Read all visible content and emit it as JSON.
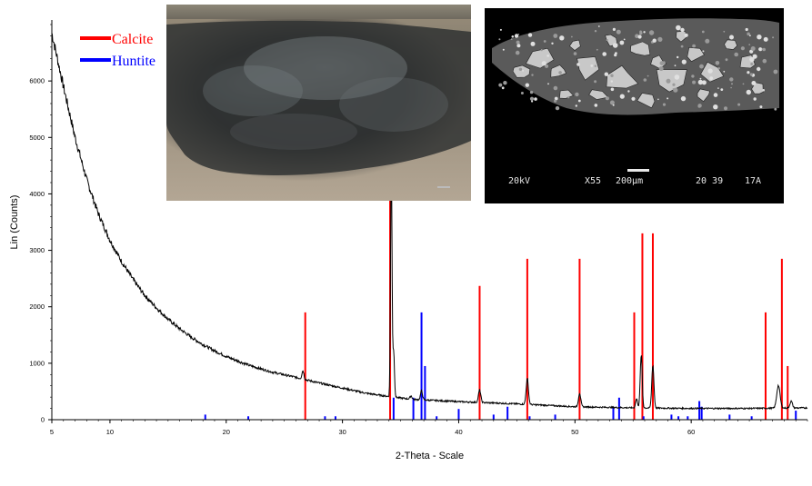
{
  "chart_data": {
    "type": "line",
    "xlabel": "2-Theta - Scale",
    "ylabel": "Lin (Counts)",
    "xlim": [
      5,
      70
    ],
    "ylim": [
      0,
      7000
    ],
    "x_ticks": [
      5,
      10,
      20,
      30,
      40,
      50,
      60
    ],
    "y_ticks": [
      0,
      1000,
      2000,
      3000,
      4000,
      5000,
      6000
    ],
    "grid": false,
    "legend_position": "top-left",
    "colors": {
      "trace": "#000000",
      "calcite": "#ff0000",
      "huntite": "#0000ff"
    },
    "trace": {
      "baseline_points": [
        [
          5,
          6850
        ],
        [
          6,
          5900
        ],
        [
          7,
          5000
        ],
        [
          8,
          4250
        ],
        [
          9,
          3650
        ],
        [
          10,
          3180
        ],
        [
          11,
          2800
        ],
        [
          12,
          2480
        ],
        [
          13,
          2200
        ],
        [
          14,
          1980
        ],
        [
          15,
          1780
        ],
        [
          16,
          1610
        ],
        [
          17,
          1460
        ],
        [
          18,
          1330
        ],
        [
          19,
          1220
        ],
        [
          20,
          1120
        ],
        [
          22,
          960
        ],
        [
          24,
          840
        ],
        [
          26,
          750
        ],
        [
          28,
          650
        ],
        [
          30,
          560
        ],
        [
          32,
          470
        ],
        [
          34,
          410
        ],
        [
          36,
          360
        ],
        [
          40,
          320
        ],
        [
          45,
          280
        ],
        [
          50,
          230
        ],
        [
          55,
          210
        ],
        [
          60,
          200
        ],
        [
          65,
          200
        ],
        [
          70,
          210
        ]
      ],
      "peaks": [
        {
          "x": 26.6,
          "height": 150,
          "width": 0.12
        },
        {
          "x": 34.2,
          "height": 4150,
          "width": 0.09
        },
        {
          "x": 34.4,
          "height": 820,
          "width": 0.1
        },
        {
          "x": 35.9,
          "height": 60,
          "width": 0.12
        },
        {
          "x": 36.8,
          "height": 160,
          "width": 0.12
        },
        {
          "x": 41.8,
          "height": 220,
          "width": 0.14
        },
        {
          "x": 45.9,
          "height": 450,
          "width": 0.14
        },
        {
          "x": 50.4,
          "height": 240,
          "width": 0.14
        },
        {
          "x": 55.3,
          "height": 160,
          "width": 0.12
        },
        {
          "x": 55.7,
          "height": 930,
          "width": 0.12
        },
        {
          "x": 56.7,
          "height": 760,
          "width": 0.13
        },
        {
          "x": 67.5,
          "height": 400,
          "width": 0.2
        },
        {
          "x": 68.6,
          "height": 120,
          "width": 0.15
        }
      ]
    },
    "series": [
      {
        "name": "Calcite",
        "type": "reference-lines",
        "x": [
          26.8,
          34.1,
          41.8,
          45.9,
          50.4,
          55.1,
          55.8,
          56.7,
          66.4,
          67.8,
          68.3
        ],
        "values": [
          1900,
          4700,
          2370,
          2850,
          2850,
          1900,
          3300,
          3300,
          1900,
          2850,
          950
        ]
      },
      {
        "name": "Huntite",
        "type": "reference-lines",
        "x": [
          18.2,
          21.9,
          28.5,
          29.4,
          34.4,
          36.1,
          36.8,
          37.1,
          38.1,
          40.0,
          43.0,
          44.2,
          46.1,
          48.3,
          53.3,
          53.8,
          55.9,
          58.3,
          58.9,
          59.7,
          60.7,
          60.9,
          63.3,
          65.2,
          69.0
        ],
        "values": [
          90,
          60,
          60,
          60,
          390,
          390,
          1900,
          950,
          60,
          190,
          90,
          230,
          60,
          90,
          230,
          390,
          60,
          90,
          60,
          60,
          330,
          230,
          90,
          60,
          160
        ]
      }
    ]
  },
  "legend": [
    {
      "label": "Calcite",
      "color": "#ff0000"
    },
    {
      "label": "Huntite",
      "color": "#0000ff"
    }
  ],
  "insets": {
    "sem": {
      "voltage": "20kV",
      "magnification": "X55",
      "scale_bar": "200µm",
      "code": "20 39",
      "suffix": "17A"
    }
  }
}
